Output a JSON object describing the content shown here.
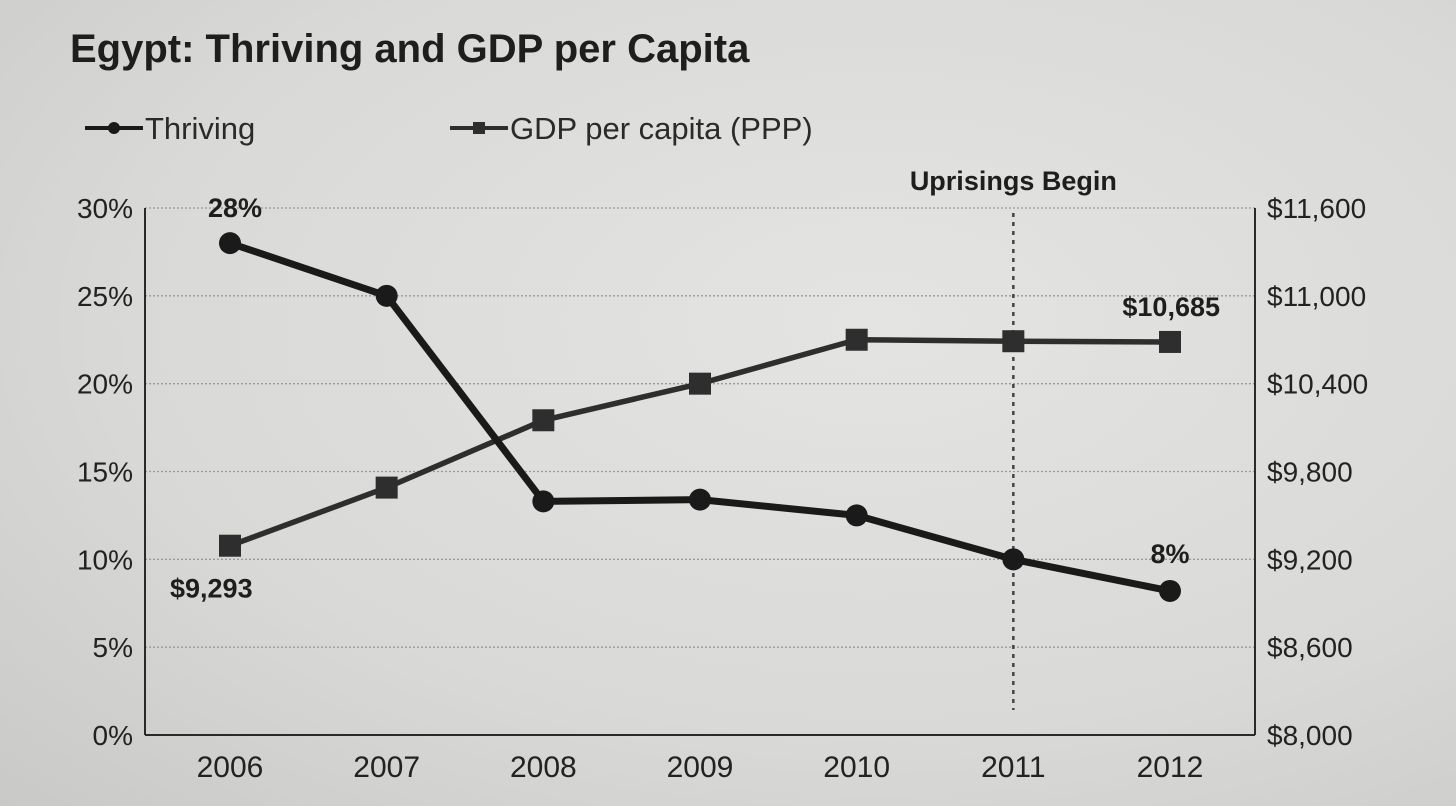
{
  "chart_data": {
    "type": "line",
    "title": "Egypt: Thriving and GDP per Capita",
    "categories": [
      "2006",
      "2007",
      "2008",
      "2009",
      "2010",
      "2011",
      "2012"
    ],
    "series": [
      {
        "name": "Thriving",
        "axis": "left",
        "marker": "circle",
        "color": "#1a1a1a",
        "values": [
          28,
          25,
          13.3,
          13.4,
          12.5,
          10,
          8.2
        ]
      },
      {
        "name": "GDP per capita (PPP)",
        "axis": "right",
        "marker": "square",
        "color": "#2e2e2e",
        "values": [
          9293,
          9690,
          10150,
          10400,
          10700,
          10690,
          10685
        ]
      }
    ],
    "y_left": {
      "ylim": [
        0,
        30
      ],
      "ticks": [
        0,
        5,
        10,
        15,
        20,
        25,
        30
      ],
      "tick_labels": [
        "0%",
        "5%",
        "10%",
        "15%",
        "20%",
        "25%",
        "30%"
      ]
    },
    "y_right": {
      "ylim": [
        8000,
        11600
      ],
      "ticks": [
        8000,
        8600,
        9200,
        9800,
        10400,
        11000,
        11600
      ],
      "tick_labels": [
        "$8,000",
        "$8,600",
        "$9,200",
        "$9,800",
        "$10,400",
        "$11,000",
        "$11,600"
      ]
    },
    "grid": true,
    "legend_position": "top-left",
    "annotations": [
      {
        "text": "Uprisings Begin",
        "x": "2011",
        "type": "vertical-dashed-line"
      }
    ],
    "data_labels": [
      {
        "series": "Thriving",
        "category": "2006",
        "text": "28%"
      },
      {
        "series": "Thriving",
        "category": "2012",
        "text": "8%"
      },
      {
        "series": "GDP per capita (PPP)",
        "category": "2006",
        "text": "$9,293"
      },
      {
        "series": "GDP per capita (PPP)",
        "category": "2012",
        "text": "$10,685"
      }
    ]
  }
}
